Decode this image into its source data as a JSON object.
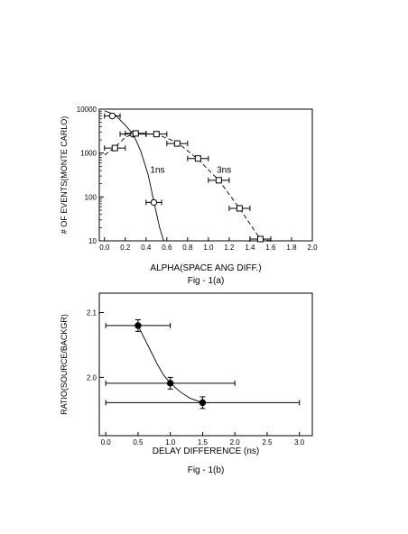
{
  "chart_data": [
    {
      "type": "scatter",
      "caption": "Fig - 1(a)",
      "xlabel": "ALPHA(SPACE ANG DIFF.)",
      "ylabel": "# OF EVENTS(MONTE CARLO)",
      "xlim": [
        -0.05,
        2.0
      ],
      "ylim": [
        10,
        10000
      ],
      "yscale": "log",
      "grid": false,
      "legend": "none",
      "x_ticks": [
        "0.0",
        "0.2",
        "0.4",
        "0.6",
        "0.8",
        "1.0",
        "1.2",
        "1.4",
        "1.6",
        "1.8",
        "2.0"
      ],
      "x_tick_values": [
        0,
        0.2,
        0.4,
        0.6,
        0.8,
        1.0,
        1.2,
        1.4,
        1.6,
        1.8,
        2.0
      ],
      "y_ticks": [
        "10",
        "100",
        "1000",
        "10000"
      ],
      "y_tick_values": [
        10,
        100,
        1000,
        10000
      ],
      "annotations": [
        {
          "text": "1ns",
          "x": 0.51,
          "y": 1000
        },
        {
          "text": "3ns",
          "x": 1.15,
          "y": 1000
        }
      ],
      "series": [
        {
          "label": "1ns",
          "marker": "open-circle",
          "line": "solid",
          "x": [
            0.075,
            0.275,
            0.475
          ],
          "y": [
            7000,
            2700,
            75
          ],
          "xerr": [
            0.075,
            0.125,
            0.075
          ],
          "yerr": [
            0,
            0,
            0
          ],
          "curve_x": [
            0.0,
            0.1,
            0.2,
            0.28,
            0.35,
            0.42,
            0.48,
            0.53,
            0.57
          ],
          "curve_y": [
            9200,
            7500,
            4300,
            2600,
            1100,
            320,
            70,
            20,
            9
          ]
        },
        {
          "label": "3ns",
          "marker": "open-square",
          "line": "dashed",
          "x": [
            0.1,
            0.3,
            0.5,
            0.7,
            0.9,
            1.1,
            1.3,
            1.5
          ],
          "y": [
            1300,
            2800,
            2700,
            1650,
            750,
            240,
            55,
            11
          ],
          "xerr": [
            0.1,
            0.1,
            0.1,
            0.1,
            0.1,
            0.1,
            0.1,
            0.1
          ],
          "yerr": [
            0,
            0,
            0,
            0,
            0,
            0,
            0,
            0
          ],
          "curve_x": [
            0.0,
            0.1,
            0.2,
            0.3,
            0.5,
            0.7,
            0.9,
            1.1,
            1.3,
            1.5,
            1.6
          ],
          "curve_y": [
            900,
            1350,
            2300,
            2800,
            2700,
            1750,
            720,
            240,
            55,
            11,
            6
          ]
        }
      ]
    },
    {
      "type": "scatter",
      "caption": "Fig - 1(b)",
      "xlabel": "DELAY DIFFERENCE (ns)",
      "ylabel": "RATIO(SOURCE/BACKGR)",
      "xlim": [
        -0.1,
        3.2
      ],
      "ylim": [
        1.91,
        2.13
      ],
      "grid": false,
      "legend": "none",
      "x_ticks": [
        "0.0",
        "0.5",
        "1.0",
        "1.5",
        "2.0",
        "2.5",
        "3.0"
      ],
      "x_tick_values": [
        0,
        0.5,
        1.0,
        1.5,
        2.0,
        2.5,
        3.0
      ],
      "y_ticks": [
        "2.0",
        "2.1"
      ],
      "y_tick_values": [
        2.0,
        2.1
      ],
      "series": [
        {
          "marker": "filled-circle",
          "line": "solid",
          "x": [
            0.5,
            1.0,
            1.5
          ],
          "y": [
            2.08,
            1.991,
            1.961
          ],
          "xerr": [
            0.5,
            1.0,
            1.5
          ],
          "yerr": [
            0.009,
            0.009,
            0.009
          ],
          "curve_x": [
            0.5,
            0.65,
            0.8,
            0.9,
            1.0,
            1.15,
            1.3,
            1.5
          ],
          "curve_y": [
            2.08,
            2.05,
            2.02,
            2.003,
            1.991,
            1.978,
            1.968,
            1.961
          ]
        }
      ]
    }
  ]
}
